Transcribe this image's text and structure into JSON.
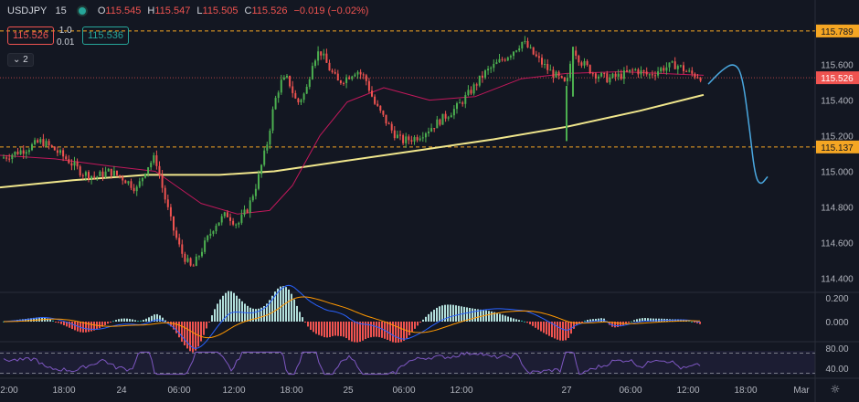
{
  "header": {
    "symbol": "USDJPY",
    "timeframe": "15",
    "open_label": "O",
    "open": "115.545",
    "high_label": "H",
    "high": "115.547",
    "low_label": "L",
    "low": "115.505",
    "close_label": "C",
    "close": "115.526",
    "change": "−0.019 (−0.02%)"
  },
  "trade": {
    "sell_price": "115.526",
    "buy_price": "115.536",
    "lot_top": "1.0",
    "lot_bottom": "0.01",
    "collapse_label": "2"
  },
  "colors": {
    "background": "#131722",
    "up": "#26a69a",
    "down": "#ef5350",
    "up_candle": "#4caf50",
    "down_candle": "#ef5350",
    "ma_slow": "#f0e68c",
    "ma_fast": "#c2185b",
    "level_line": "#f5a623",
    "forecast": "#4aa8e0",
    "macd": "#2962ff",
    "signal": "#ff9800",
    "rsi": "#7e57c2"
  },
  "chart_data": {
    "type": "candlestick",
    "symbol": "USDJPY",
    "interval": "15",
    "y_axis": {
      "range": [
        114.33,
        115.85
      ],
      "tick_labels": [
        "115.600",
        "115.400",
        "115.200",
        "115.000",
        "114.800",
        "114.600",
        "114.400"
      ],
      "ticks": [
        115.6,
        115.4,
        115.2,
        115.0,
        114.8,
        114.6,
        114.4
      ]
    },
    "x_axis": {
      "tick_labels": [
        "2:00",
        "18:00",
        "24",
        "06:00",
        "12:00",
        "18:00",
        "25",
        "06:00",
        "12:00",
        "27",
        "06:00",
        "12:00",
        "18:00",
        "Mar"
      ]
    },
    "levels": [
      {
        "price": 115.789,
        "label": "115.789",
        "style": "dashed"
      },
      {
        "price": 115.137,
        "label": "115.137",
        "style": "dashed"
      },
      {
        "price": 115.526,
        "label": "115.526",
        "style": "dotted",
        "current": true
      }
    ],
    "price_path": [
      [
        0,
        115.07
      ],
      [
        15,
        115.1
      ],
      [
        30,
        115.13
      ],
      [
        45,
        115.17
      ],
      [
        60,
        115.12
      ],
      [
        75,
        115.06
      ],
      [
        90,
        114.99
      ],
      [
        105,
        114.97
      ],
      [
        120,
        115.0
      ],
      [
        135,
        114.96
      ],
      [
        150,
        114.9
      ],
      [
        160,
        115.02
      ],
      [
        170,
        115.08
      ],
      [
        178,
        114.9
      ],
      [
        188,
        114.7
      ],
      [
        198,
        114.55
      ],
      [
        210,
        114.45
      ],
      [
        222,
        114.57
      ],
      [
        235,
        114.7
      ],
      [
        248,
        114.76
      ],
      [
        260,
        114.7
      ],
      [
        272,
        114.8
      ],
      [
        282,
        114.95
      ],
      [
        292,
        115.15
      ],
      [
        300,
        115.38
      ],
      [
        307,
        115.5
      ],
      [
        315,
        115.52
      ],
      [
        325,
        115.38
      ],
      [
        335,
        115.45
      ],
      [
        342,
        115.62
      ],
      [
        350,
        115.68
      ],
      [
        360,
        115.58
      ],
      [
        370,
        115.5
      ],
      [
        380,
        115.53
      ],
      [
        390,
        115.57
      ],
      [
        400,
        115.52
      ],
      [
        410,
        115.38
      ],
      [
        420,
        115.3
      ],
      [
        430,
        115.22
      ],
      [
        440,
        115.17
      ],
      [
        455,
        115.19
      ],
      [
        470,
        115.24
      ],
      [
        485,
        115.3
      ],
      [
        500,
        115.36
      ],
      [
        515,
        115.45
      ],
      [
        530,
        115.55
      ],
      [
        545,
        115.61
      ],
      [
        560,
        115.67
      ],
      [
        572,
        115.73
      ],
      [
        585,
        115.65
      ],
      [
        600,
        115.57
      ],
      [
        612,
        115.52
      ],
      [
        620,
        115.48
      ],
      [
        627,
        115.7
      ],
      [
        635,
        115.62
      ],
      [
        650,
        115.55
      ],
      [
        665,
        115.52
      ],
      [
        680,
        115.54
      ],
      [
        695,
        115.57
      ],
      [
        710,
        115.54
      ],
      [
        725,
        115.58
      ],
      [
        740,
        115.6
      ],
      [
        755,
        115.55
      ],
      [
        768,
        115.53
      ]
    ],
    "spikes": [
      {
        "x": 620,
        "low": 115.17
      },
      {
        "x": 627,
        "low": 115.42
      }
    ],
    "ma_slow": [
      [
        0,
        114.91
      ],
      [
        80,
        114.95
      ],
      [
        160,
        114.98
      ],
      [
        240,
        114.98
      ],
      [
        300,
        115.0
      ],
      [
        380,
        115.06
      ],
      [
        460,
        115.12
      ],
      [
        540,
        115.18
      ],
      [
        620,
        115.25
      ],
      [
        700,
        115.34
      ],
      [
        770,
        115.43
      ]
    ],
    "ma_fast": [
      [
        0,
        115.09
      ],
      [
        60,
        115.07
      ],
      [
        120,
        115.03
      ],
      [
        170,
        115.0
      ],
      [
        220,
        114.82
      ],
      [
        260,
        114.76
      ],
      [
        295,
        114.78
      ],
      [
        320,
        114.92
      ],
      [
        350,
        115.2
      ],
      [
        380,
        115.39
      ],
      [
        420,
        115.47
      ],
      [
        470,
        115.4
      ],
      [
        520,
        115.42
      ],
      [
        570,
        115.52
      ],
      [
        620,
        115.55
      ],
      [
        680,
        115.56
      ],
      [
        770,
        115.54
      ]
    ],
    "forecast_path": [
      [
        775,
        115.49
      ],
      [
        790,
        115.57
      ],
      [
        803,
        115.61
      ],
      [
        812,
        115.55
      ],
      [
        820,
        115.25
      ],
      [
        826,
        114.98
      ],
      [
        832,
        114.92
      ],
      [
        840,
        114.97
      ]
    ],
    "macd": {
      "y_tick_labels": [
        "0.200",
        "0.000"
      ],
      "ticks": [
        0.2,
        0.0
      ]
    },
    "rsi": {
      "y_tick_labels": [
        "80.00",
        "40.00"
      ],
      "ticks": [
        80,
        40
      ],
      "bands": [
        70,
        30
      ]
    }
  }
}
